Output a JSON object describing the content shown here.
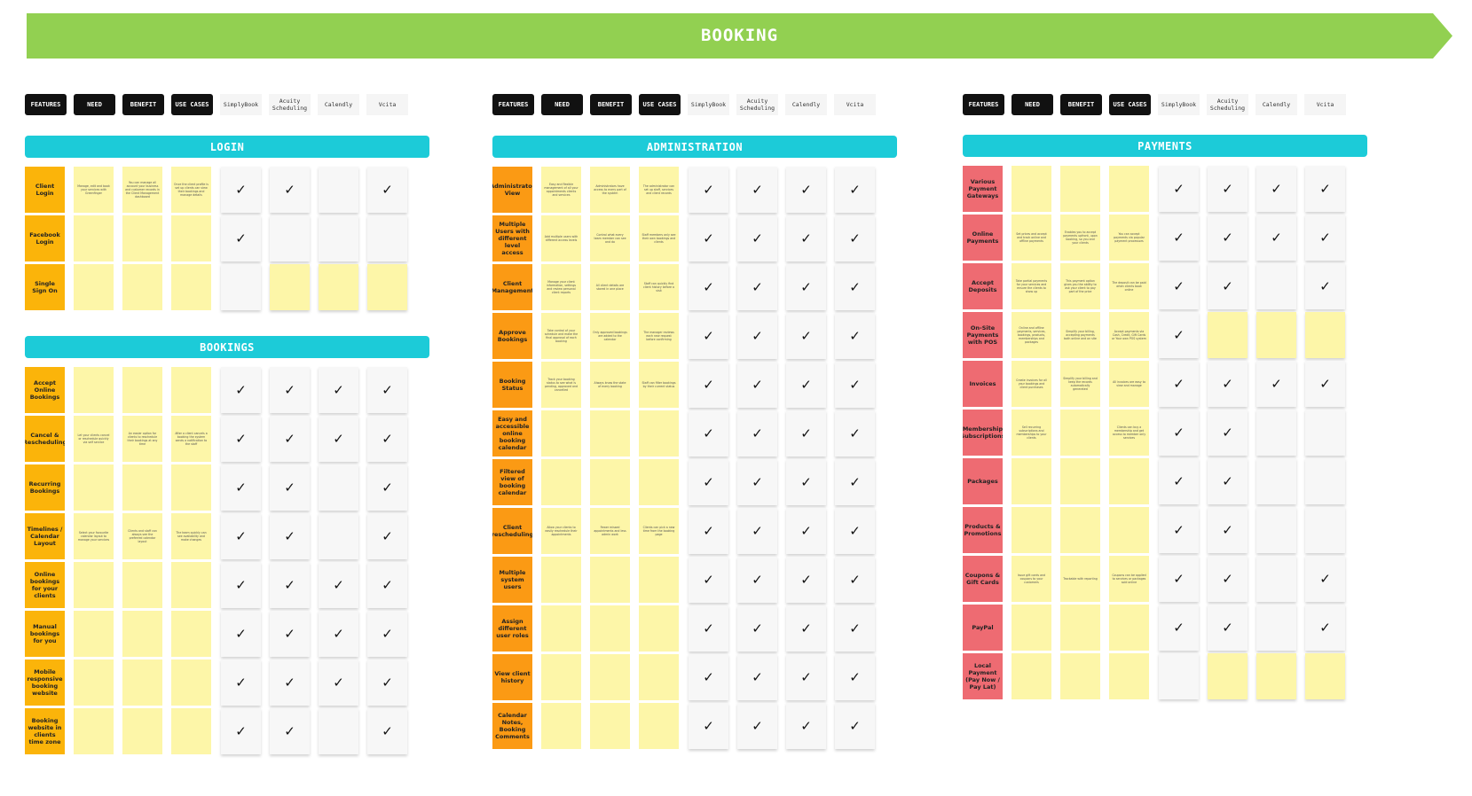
{
  "banner": {
    "title": "BOOKING",
    "color": "#92d051"
  },
  "column_headers": {
    "dark": [
      "FEATURES",
      "NEED",
      "BENEFIT",
      "USE CASES"
    ],
    "vendors": [
      "SimplyBook",
      "Acuity Scheduling",
      "Calendly",
      "Vcita"
    ]
  },
  "colors": {
    "section_title": "#1ccbd8",
    "feature_orange": "#fbb40a",
    "feature_red": "#ee6b72",
    "sticky_yellow": "#fdf6a8",
    "sticky_white": "#f7f7f7"
  },
  "check_glyph": "✓",
  "sections": [
    {
      "title": "LOGIN",
      "feature_color": "orange",
      "rows": [
        {
          "feature": "Client Login",
          "need": "Manage, edit and book your services with Greenfinger",
          "benefit": "You can manage all account your business and customer records in the Client Management dashboard",
          "usecases": "Once the client profile is set up clients can view their bookings and manage details",
          "vendors": [
            "w✓",
            "w✓",
            "w",
            "w✓"
          ]
        },
        {
          "feature": "Facebook Login",
          "need": "",
          "benefit": "",
          "usecases": "",
          "vendors": [
            "w✓",
            "w",
            "w",
            "w"
          ]
        },
        {
          "feature": "Single Sign On",
          "need": "",
          "benefit": "",
          "usecases": "",
          "vendors": [
            "w",
            "y",
            "y",
            "y"
          ]
        }
      ]
    },
    {
      "title": "BOOKINGS",
      "feature_color": "orange",
      "rows": [
        {
          "feature": "Accept Online Bookings",
          "need": "",
          "benefit": "",
          "usecases": "",
          "vendors": [
            "w✓",
            "w✓",
            "w✓",
            "w✓"
          ]
        },
        {
          "feature": "Cancel & Rescheduling",
          "need": "Let your clients cancel or reschedule quickly via self service",
          "benefit": "An easier option for clients to reschedule their bookings at any time",
          "usecases": "After a client cancels a booking the system sends a notification to the staff",
          "vendors": [
            "w✓",
            "w✓",
            "w✓",
            "w✓"
          ]
        },
        {
          "feature": "Recurring Bookings",
          "need": "",
          "benefit": "",
          "usecases": "",
          "vendors": [
            "w✓",
            "w✓",
            "w",
            "w✓"
          ]
        },
        {
          "feature": "Timelines / Calendar Layout",
          "need": "Select your favourite calendar layout to manage your services",
          "benefit": "Clients and staff can always see the preferred calendar layout",
          "usecases": "The team quickly can see availability and make changes",
          "vendors": [
            "w✓",
            "w✓",
            "w",
            "w✓"
          ]
        },
        {
          "feature": "Online bookings for your clients",
          "need": "",
          "benefit": "",
          "usecases": "",
          "vendors": [
            "w✓",
            "w✓",
            "w✓",
            "w✓"
          ]
        },
        {
          "feature": "Manual bookings for you",
          "need": "",
          "benefit": "",
          "usecases": "",
          "vendors": [
            "w✓",
            "w✓",
            "w✓",
            "w✓"
          ]
        },
        {
          "feature": "Mobile responsive booking website",
          "need": "",
          "benefit": "",
          "usecases": "",
          "vendors": [
            "w✓",
            "w✓",
            "w✓",
            "w✓"
          ]
        },
        {
          "feature": "Booking website in clients time zone",
          "need": "",
          "benefit": "",
          "usecases": "",
          "vendors": [
            "w✓",
            "w✓",
            "w",
            "w✓"
          ]
        }
      ]
    },
    {
      "title": "ADMINISTRATION",
      "feature_color": "orange2",
      "rows": [
        {
          "feature": "Administrator View",
          "need": "Easy and flexible management of all your appointments clients and services",
          "benefit": "Administrators have access to every part of the system",
          "usecases": "The administrator can set up staff, services and client records",
          "vendors": [
            "w✓",
            "w✓",
            "w✓",
            "w✓"
          ]
        },
        {
          "feature": "Multiple Users with different level access",
          "need": "Add multiple users with different access levels",
          "benefit": "Control what every team member can see and do",
          "usecases": "Staff members only see their own bookings and clients",
          "vendors": [
            "w✓",
            "w✓",
            "w✓",
            "w✓"
          ]
        },
        {
          "feature": "Client Management",
          "need": "Manage your client information, settings and review personal client reports",
          "benefit": "All client details are stored in one place",
          "usecases": "Staff can quickly find client history before a visit",
          "vendors": [
            "w✓",
            "w✓",
            "w✓",
            "w✓"
          ]
        },
        {
          "feature": "Approve Bookings",
          "need": "Take control of your schedule and make the final approval of each booking",
          "benefit": "Only approved bookings are added to the calendar",
          "usecases": "The manager reviews each new request before confirming",
          "vendors": [
            "w✓",
            "w✓",
            "w✓",
            "w✓"
          ]
        },
        {
          "feature": "Booking Status",
          "need": "Track your booking status to see what is pending, approved and cancelled",
          "benefit": "Always know the state of every booking",
          "usecases": "Staff can filter bookings by their current status",
          "vendors": [
            "w✓",
            "w✓",
            "w✓",
            "w✓"
          ]
        },
        {
          "feature": "Easy and accessible online booking calendar",
          "need": "",
          "benefit": "",
          "usecases": "",
          "vendors": [
            "w✓",
            "w✓",
            "w✓",
            "w✓"
          ]
        },
        {
          "feature": "Filtered view of booking calendar",
          "need": "",
          "benefit": "",
          "usecases": "",
          "vendors": [
            "w✓",
            "w✓",
            "w✓",
            "w✓"
          ]
        },
        {
          "feature": "Client rescheduling",
          "need": "Allow your clients to easily reschedule their appointments",
          "benefit": "Fewer missed appointments and less admin work",
          "usecases": "Clients can pick a new time from the booking page",
          "vendors": [
            "w✓",
            "w✓",
            "w✓",
            "w✓"
          ]
        },
        {
          "feature": "Multiple system users",
          "need": "",
          "benefit": "",
          "usecases": "",
          "vendors": [
            "w✓",
            "w✓",
            "w✓",
            "w✓"
          ]
        },
        {
          "feature": "Assign different user roles",
          "need": "",
          "benefit": "",
          "usecases": "",
          "vendors": [
            "w✓",
            "w✓",
            "w✓",
            "w✓"
          ]
        },
        {
          "feature": "View client history",
          "need": "",
          "benefit": "",
          "usecases": "",
          "vendors": [
            "w✓",
            "w✓",
            "w✓",
            "w✓"
          ]
        },
        {
          "feature": "Calendar Notes, Booking Comments",
          "need": "",
          "benefit": "",
          "usecases": "",
          "vendors": [
            "w✓",
            "w✓",
            "w✓",
            "w✓"
          ]
        }
      ]
    },
    {
      "title": "PAYMENTS",
      "feature_color": "red",
      "rows": [
        {
          "feature": "Various Payment Gateways",
          "need": "",
          "benefit": "",
          "usecases": "",
          "vendors": [
            "w✓",
            "w✓",
            "w✓",
            "w✓"
          ]
        },
        {
          "feature": "Online Payments",
          "need": "Set prices and accept and track online and offline payments",
          "benefit": "Enables you to accept payments upfront, upon booking, so you and your clients",
          "usecases": "You can accept payments via popular payment processors",
          "vendors": [
            "w✓",
            "w✓",
            "w✓",
            "w✓"
          ]
        },
        {
          "feature": "Accept Deposits",
          "need": "Take partial payments for your services and ensure the clients to show up",
          "benefit": "This payment option gives you the ability to ask your client to pay part of the price",
          "usecases": "The deposit can be paid when clients book online",
          "vendors": [
            "w✓",
            "w✓",
            "w",
            "w✓"
          ]
        },
        {
          "feature": "On-Site Payments with POS",
          "need": "Online and offline payments, services, bookings, products, memberships and packages",
          "benefit": "Simplify your billing, accepting payments both online and on site",
          "usecases": "Accept payments via Cash, Credit, Gift Cards or Your own POS system",
          "vendors": [
            "w✓",
            "y",
            "y",
            "y"
          ]
        },
        {
          "feature": "Invoices",
          "need": "Create invoices for all your bookings and client purchases",
          "benefit": "Simplify your billing and keep the records automatically generated",
          "usecases": "All invoices are easy to view and manage",
          "vendors": [
            "w✓",
            "w✓",
            "w✓",
            "w✓"
          ]
        },
        {
          "feature": "Membership Subscriptions",
          "need": "Sell recurring subscriptions and memberships to your clients",
          "benefit": "",
          "usecases": "Clients can buy a membership and get access to member only services",
          "vendors": [
            "w✓",
            "w✓",
            "w",
            "w"
          ]
        },
        {
          "feature": "Packages",
          "need": "",
          "benefit": "",
          "usecases": "",
          "vendors": [
            "w✓",
            "w✓",
            "w",
            "w"
          ]
        },
        {
          "feature": "Products & Promotions",
          "need": "",
          "benefit": "",
          "usecases": "",
          "vendors": [
            "w✓",
            "w✓",
            "w",
            "w"
          ]
        },
        {
          "feature": "Coupons & Gift Cards",
          "need": "Issue gift cards and coupons to your customers",
          "benefit": "Trackable with reporting",
          "usecases": "Coupons can be applied to services or packages sold online",
          "vendors": [
            "w✓",
            "w✓",
            "w",
            "w✓"
          ]
        },
        {
          "feature": "PayPal",
          "need": "",
          "benefit": "",
          "usecases": "",
          "vendors": [
            "w✓",
            "w✓",
            "w",
            "w✓"
          ]
        },
        {
          "feature": "Local Payment (Pay Now / Pay Lat)",
          "need": "",
          "benefit": "",
          "usecases": "",
          "vendors": [
            "w",
            "y",
            "y",
            "y"
          ]
        }
      ]
    }
  ]
}
